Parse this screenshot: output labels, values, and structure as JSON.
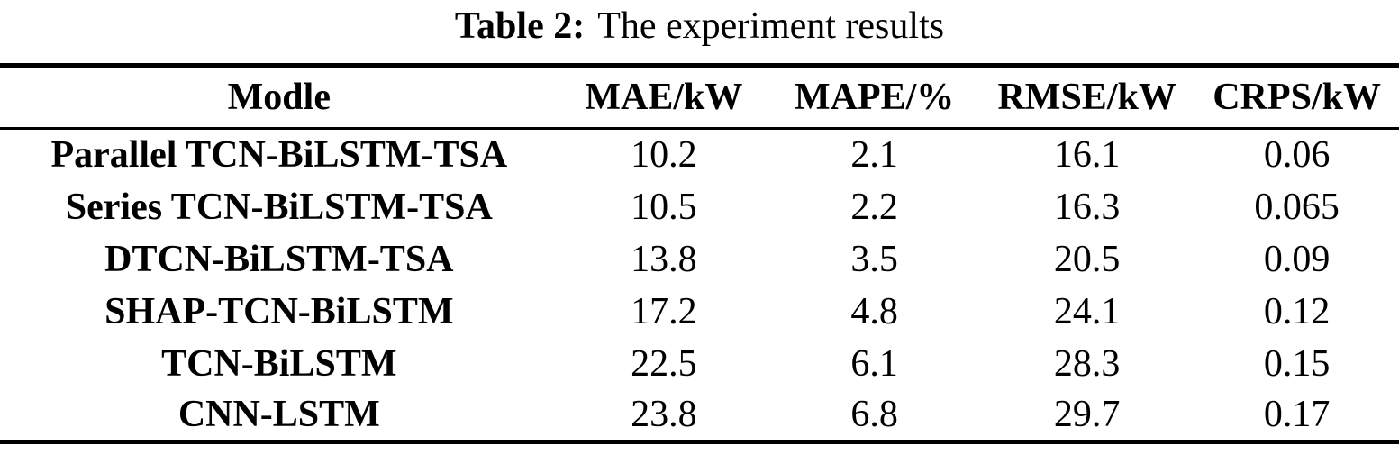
{
  "title": {
    "prefix": "Table 2:",
    "text": "The experiment results"
  },
  "table": {
    "columns": [
      "Modle",
      "MAE/kW",
      "MAPE/%",
      "RMSE/kW",
      "CRPS/kW"
    ],
    "rows": [
      [
        "Parallel TCN-BiLSTM-TSA",
        "10.2",
        "2.1",
        "16.1",
        "0.06"
      ],
      [
        "Series TCN-BiLSTM-TSA",
        "10.5",
        "2.2",
        "16.3",
        "0.065"
      ],
      [
        "DTCN-BiLSTM-TSA",
        "13.8",
        "3.5",
        "20.5",
        "0.09"
      ],
      [
        "SHAP-TCN-BiLSTM",
        "17.2",
        "4.8",
        "24.1",
        "0.12"
      ],
      [
        "TCN-BiLSTM",
        "22.5",
        "6.1",
        "28.3",
        "0.15"
      ],
      [
        "CNN-LSTM",
        "23.8",
        "6.8",
        "29.7",
        "0.17"
      ]
    ]
  }
}
